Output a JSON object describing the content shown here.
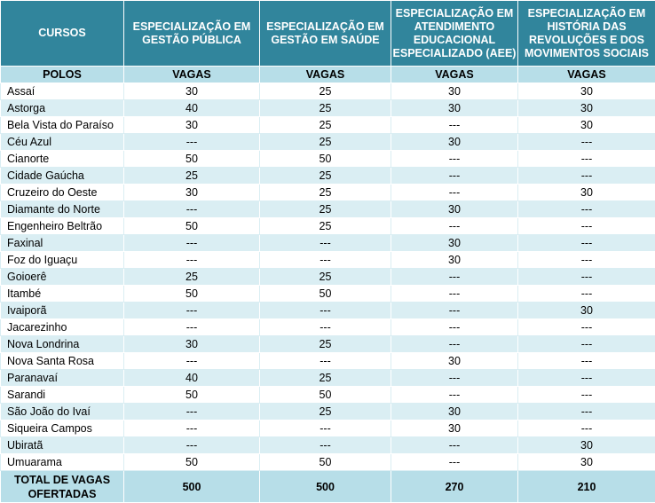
{
  "header": {
    "cursos": "CURSOS",
    "courses": [
      "ESPECIALIZAÇÃO EM GESTÃO PÚBLICA",
      "ESPECIALIZAÇÃO EM GESTÃO EM SAÚDE",
      "ESPECIALIZAÇÃO EM ATENDIMENTO EDUCACIONAL ESPECIALIZADO (AEE)",
      "ESPECIALIZAÇÃO EM HISTÓRIA DAS REVOLUÇÕES E DOS MOVIMENTOS SOCIAIS"
    ]
  },
  "subheader": {
    "polos": "POLOS",
    "vagas": [
      "VAGAS",
      "VAGAS",
      "VAGAS",
      "VAGAS"
    ]
  },
  "rows": [
    {
      "name": "Assaí",
      "values": [
        "30",
        "25",
        "30",
        "30"
      ]
    },
    {
      "name": "Astorga",
      "values": [
        "40",
        "25",
        "30",
        "30"
      ]
    },
    {
      "name": "Bela Vista do Paraíso",
      "values": [
        "30",
        "25",
        "---",
        "30"
      ]
    },
    {
      "name": "Céu Azul",
      "values": [
        "---",
        "25",
        "30",
        "---"
      ]
    },
    {
      "name": "Cianorte",
      "values": [
        "50",
        "50",
        "---",
        "---"
      ]
    },
    {
      "name": "Cidade Gaúcha",
      "values": [
        "25",
        "25",
        "---",
        "---"
      ]
    },
    {
      "name": "Cruzeiro do Oeste",
      "values": [
        "30",
        "25",
        "---",
        "30"
      ]
    },
    {
      "name": "Diamante do Norte",
      "values": [
        "---",
        "25",
        "30",
        "---"
      ]
    },
    {
      "name": "Engenheiro Beltrão",
      "values": [
        "50",
        "25",
        "---",
        "---"
      ]
    },
    {
      "name": "Faxinal",
      "values": [
        "---",
        "---",
        "30",
        "---"
      ]
    },
    {
      "name": "Foz do Iguaçu",
      "values": [
        "---",
        "---",
        "30",
        "---"
      ]
    },
    {
      "name": "Goioerê",
      "values": [
        "25",
        "25",
        "---",
        "---"
      ]
    },
    {
      "name": "Itambé",
      "values": [
        "50",
        "50",
        "---",
        "---"
      ]
    },
    {
      "name": "Ivaiporã",
      "values": [
        "---",
        "---",
        "---",
        "30"
      ]
    },
    {
      "name": "Jacarezinho",
      "values": [
        "---",
        "---",
        "---",
        "---"
      ]
    },
    {
      "name": "Nova Londrina",
      "values": [
        "30",
        "25",
        "---",
        "---"
      ]
    },
    {
      "name": "Nova Santa Rosa",
      "values": [
        "---",
        "---",
        "30",
        "---"
      ]
    },
    {
      "name": "Paranavaí",
      "values": [
        "40",
        "25",
        "---",
        "---"
      ]
    },
    {
      "name": "Sarandi",
      "values": [
        "50",
        "50",
        "---",
        "---"
      ]
    },
    {
      "name": "São João do Ivaí",
      "values": [
        "---",
        "25",
        "30",
        "---"
      ]
    },
    {
      "name": "Siqueira Campos",
      "values": [
        "---",
        "---",
        "30",
        "---"
      ]
    },
    {
      "name": "Ubiratã",
      "values": [
        "---",
        "---",
        "---",
        "30"
      ]
    },
    {
      "name": "Umuarama",
      "values": [
        "50",
        "50",
        "---",
        "30"
      ]
    }
  ],
  "total": {
    "label": "TOTAL DE VAGAS OFERTADAS",
    "values": [
      "500",
      "500",
      "270",
      "210"
    ]
  },
  "colors": {
    "header_bg": "#31859c",
    "subheader_bg": "#b7dee8",
    "stripe_bg": "#daeef3"
  }
}
